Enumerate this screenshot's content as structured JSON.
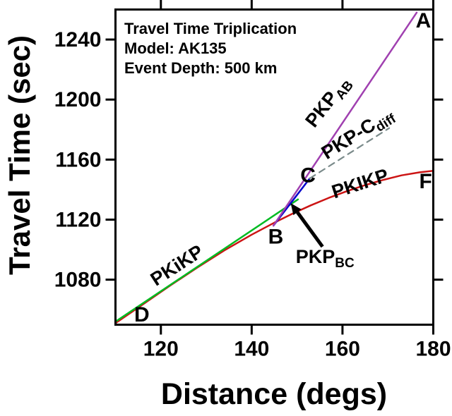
{
  "figure": {
    "title_lines": [
      "Travel Time Triplication",
      "Model: AK135",
      "Event Depth: 500 km"
    ],
    "x_axis_label": "Distance (degs)",
    "y_axis_label": "Travel Time (sec)",
    "background_color": "#ffffff",
    "frame_color": "#000000"
  },
  "chart_data": {
    "type": "line",
    "title": "Travel Time Triplication",
    "model": "AK135",
    "event_depth_km": 500,
    "xlabel": "Distance (degs)",
    "ylabel": "Travel Time (sec)",
    "xlim": [
      110,
      180
    ],
    "ylim": [
      1050,
      1260
    ],
    "x_ticks": [
      120,
      140,
      160,
      180
    ],
    "y_ticks": [
      1080,
      1120,
      1160,
      1200,
      1240
    ],
    "grid": false,
    "legend": "inline-labels",
    "series": [
      {
        "name": "PKIKP",
        "color": "#CC1414",
        "style": "solid",
        "width": 2.5,
        "points": [
          [
            110,
            1051
          ],
          [
            116,
            1063.5
          ],
          [
            122,
            1076
          ],
          [
            128,
            1088
          ],
          [
            134,
            1099.5
          ],
          [
            140,
            1110
          ],
          [
            145,
            1118
          ],
          [
            149,
            1124
          ],
          [
            153,
            1129.5
          ],
          [
            157,
            1134.5
          ],
          [
            161,
            1139
          ],
          [
            165,
            1143
          ],
          [
            169,
            1146.5
          ],
          [
            173,
            1149.5
          ],
          [
            177,
            1151.5
          ],
          [
            180,
            1152.5
          ]
        ]
      },
      {
        "name": "PKiKP",
        "color": "#00BB22",
        "style": "solid",
        "width": 2.5,
        "points": [
          [
            110,
            1052
          ],
          [
            150.2,
            1133.5
          ]
        ]
      },
      {
        "name": "PKP_BC",
        "color": "#0000CC",
        "style": "solid",
        "width": 2.5,
        "points": [
          [
            144.8,
            1116
          ],
          [
            152.8,
            1147.5
          ]
        ]
      },
      {
        "name": "PKP_AB",
        "color": "#A040B0",
        "style": "solid",
        "width": 2.5,
        "points": [
          [
            144.8,
            1116
          ],
          [
            176.35,
            1258
          ]
        ]
      },
      {
        "name": "PKP-Cdiff",
        "color": "#7A8A8A",
        "style": "dashed",
        "width": 2.2,
        "points": [
          [
            152.8,
            1147.5
          ],
          [
            170.3,
            1181
          ]
        ]
      }
    ],
    "point_labels": [
      {
        "id": "a",
        "text": "A",
        "x": 177.8,
        "y": 1248,
        "rot": 0,
        "size": 30,
        "anchor": "middle"
      },
      {
        "id": "b",
        "text": "B",
        "x": 145.3,
        "y": 1104,
        "rot": 0,
        "size": 30,
        "anchor": "middle"
      },
      {
        "id": "c",
        "text": "C",
        "x": 152.4,
        "y": 1145,
        "rot": 0,
        "size": 30,
        "anchor": "middle"
      },
      {
        "id": "d",
        "text": "D",
        "x": 115.8,
        "y": 1052,
        "rot": 0,
        "size": 30,
        "anchor": "middle"
      },
      {
        "id": "f",
        "text": "F",
        "x": 178.3,
        "y": 1141,
        "rot": 0,
        "size": 30,
        "anchor": "middle"
      }
    ],
    "phase_labels": [
      {
        "id": "pkikp-reflection",
        "text": "PKiKP",
        "sub": "",
        "x": 124.3,
        "y": 1086,
        "rot": -33,
        "size": 27,
        "anchor": "middle"
      },
      {
        "id": "pkp-ab",
        "text": "PKP",
        "sub": "AB",
        "x": 157.8,
        "y": 1196,
        "rot": -52,
        "size": 27,
        "anchor": "middle"
      },
      {
        "id": "pkp-cdiff",
        "text": "PKP-C",
        "sub": "diff",
        "x": 164.0,
        "y": 1174,
        "rot": -32,
        "size": 27,
        "anchor": "middle"
      },
      {
        "id": "pkikp-df",
        "text": "PKIKP",
        "sub": "",
        "x": 164.3,
        "y": 1140,
        "rot": -18,
        "size": 27,
        "anchor": "middle"
      },
      {
        "id": "pkp-bc",
        "text": "PKP",
        "sub": "BC",
        "x": 149.7,
        "y": 1091,
        "rot": 0,
        "size": 27,
        "anchor": "start"
      }
    ],
    "arrow": {
      "from": [
        155.6,
        1102
      ],
      "to": [
        148.6,
        1131.0
      ],
      "color": "#000000",
      "width": 5,
      "head_length": 16,
      "head_width": 14
    }
  }
}
